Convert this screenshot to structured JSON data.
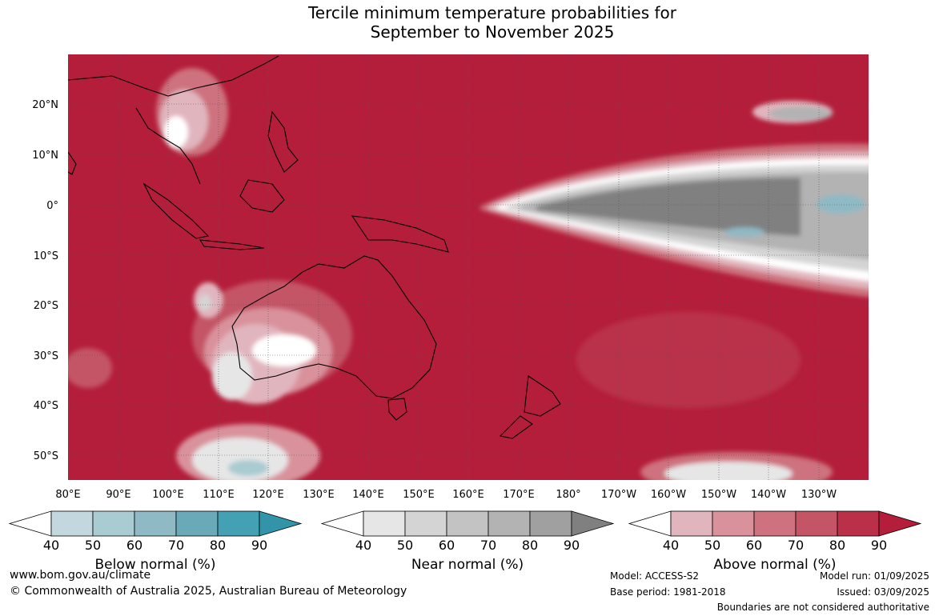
{
  "title": {
    "line1": "Tercile minimum temperature probabilities for",
    "line2": "September to November 2025"
  },
  "map": {
    "lat_labels": [
      "20°N",
      "10°N",
      "0°",
      "10°S",
      "20°S",
      "30°S",
      "40°S",
      "50°S"
    ],
    "lon_labels": [
      "80°E",
      "90°E",
      "100°E",
      "110°E",
      "120°E",
      "130°E",
      "140°E",
      "150°E",
      "160°E",
      "170°E",
      "180°",
      "170°W",
      "160°W",
      "150°W",
      "140°W",
      "130°W"
    ],
    "background_color": "#b41e3a",
    "grid_color": "#555555"
  },
  "colorbars": [
    {
      "label": "Below normal (%)",
      "ticks": [
        "40",
        "50",
        "60",
        "70",
        "80",
        "90"
      ],
      "colors": [
        "#ffffff",
        "#c2d8de",
        "#a9cbd2",
        "#8fb9c4",
        "#6aa9b7",
        "#44a0b3",
        "#3294a8"
      ]
    },
    {
      "label": "Near normal (%)",
      "ticks": [
        "40",
        "50",
        "60",
        "70",
        "80",
        "90"
      ],
      "colors": [
        "#ffffff",
        "#e6e6e6",
        "#d4d4d4",
        "#c3c3c3",
        "#b3b3b3",
        "#a0a0a0",
        "#808080"
      ]
    },
    {
      "label": "Above normal (%)",
      "ticks": [
        "40",
        "50",
        "60",
        "70",
        "80",
        "90"
      ],
      "colors": [
        "#ffffff",
        "#e1b5be",
        "#d9929c",
        "#cd727e",
        "#c45566",
        "#ba3048",
        "#b41e3a"
      ]
    }
  ],
  "footer": {
    "website": "www.bom.gov.au/climate",
    "copyright": "© Commonwealth of Australia 2025, Australian Bureau of Meteorology",
    "model": "Model: ACCESS-S2",
    "base_period": "Base period: 1981-2018",
    "model_run": "Model run: 01/09/2025",
    "issued": "Issued: 03/09/2025",
    "disclaimer": "Boundaries are not considered authoritative"
  }
}
